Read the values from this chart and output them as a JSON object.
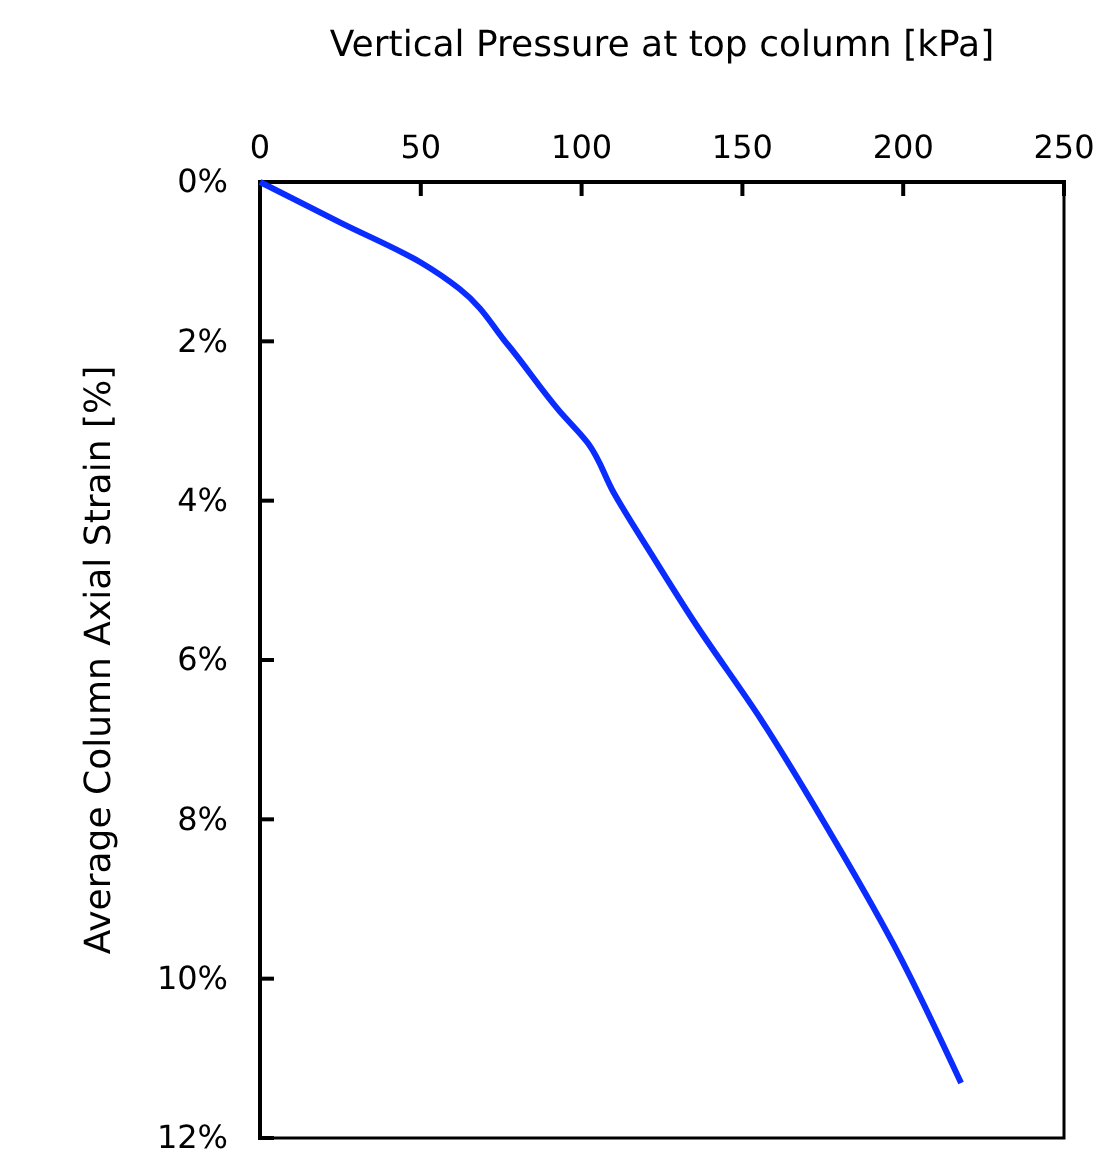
{
  "chart_data": {
    "type": "line",
    "xlabel": "Vertical Pressure at top column [kPa]",
    "ylabel": "Average Column Axial Strain [%]",
    "xlim": [
      0,
      250
    ],
    "xticks": [
      0,
      50,
      100,
      150,
      200,
      250
    ],
    "ylim": [
      12,
      0
    ],
    "yticks": [
      {
        "value": 0,
        "label": "0%"
      },
      {
        "value": 2,
        "label": "2%"
      },
      {
        "value": 4,
        "label": "4%"
      },
      {
        "value": 6,
        "label": "6%"
      },
      {
        "value": 8,
        "label": "8%"
      },
      {
        "value": 10,
        "label": "10%"
      },
      {
        "value": 12,
        "label": "12%"
      }
    ],
    "marker": "none",
    "line_style": "solid",
    "series": [
      {
        "color": "#0a2cff",
        "x": [
          0,
          25,
          50,
          62,
          77,
          93,
          102,
          110,
          122,
          135,
          156,
          176,
          197,
          218
        ],
        "values": [
          0,
          0.51,
          1.01,
          1.34,
          2.04,
          2.87,
          3.28,
          3.9,
          4.69,
          5.52,
          6.76,
          8.08,
          9.57,
          11.31
        ]
      }
    ]
  }
}
